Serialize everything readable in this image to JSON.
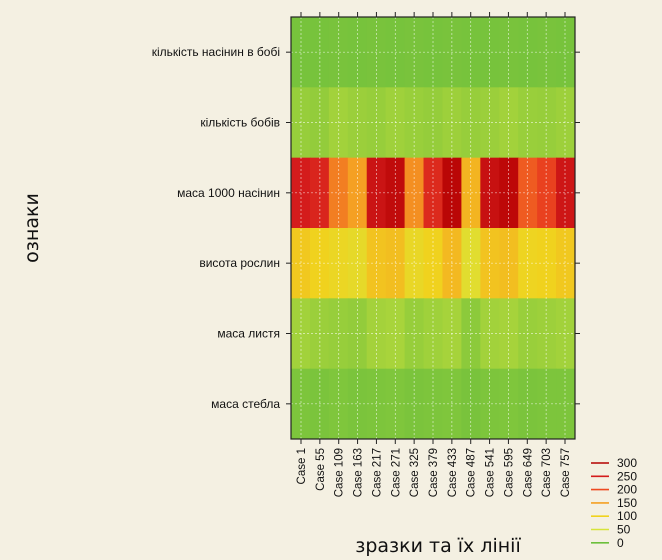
{
  "chart_data": {
    "type": "heatmap",
    "title": "",
    "xlabel": "зразки та їх лінії",
    "ylabel": "ознаки",
    "categories": [
      "Case 1",
      "Case 55",
      "Case 109",
      "Case 163",
      "Case 217",
      "Case 271",
      "Case 325",
      "Case 379",
      "Case 433",
      "Case 487",
      "Case 541",
      "Case 595",
      "Case 649",
      "Case 703",
      "Case 757"
    ],
    "rows": [
      "кількість насінин в бобі",
      "кількість бобів",
      "маса 1000 насінин",
      "висота рослин",
      "маса листя",
      "маса стебла"
    ],
    "x_range": [
      1,
      800
    ],
    "grid": true,
    "series": [
      {
        "name": "кількість насінин в бобі",
        "values": [
          5,
          5,
          6,
          5,
          6,
          5,
          6,
          5,
          6,
          5,
          5,
          6,
          5,
          6,
          5
        ]
      },
      {
        "name": "кількість бобів",
        "values": [
          20,
          18,
          25,
          22,
          20,
          24,
          21,
          19,
          23,
          20,
          22,
          25,
          21,
          20,
          23
        ]
      },
      {
        "name": "маса 1000 насінин",
        "values": [
          250,
          240,
          170,
          150,
          265,
          280,
          160,
          235,
          290,
          130,
          270,
          285,
          190,
          210,
          260
        ]
      },
      {
        "name": "висота рослин",
        "values": [
          110,
          100,
          90,
          80,
          115,
          120,
          85,
          100,
          125,
          70,
          115,
          120,
          95,
          100,
          110
        ]
      },
      {
        "name": "маса листя",
        "values": [
          25,
          22,
          20,
          18,
          26,
          28,
          20,
          24,
          27,
          15,
          25,
          27,
          21,
          23,
          25
        ]
      },
      {
        "name": "маса стебла",
        "values": [
          8,
          7,
          9,
          7,
          8,
          9,
          7,
          8,
          9,
          6,
          8,
          9,
          7,
          8,
          8
        ]
      }
    ],
    "legend": {
      "position": "bottom-right",
      "levels": [
        {
          "value": "300",
          "color": "#b30000"
        },
        {
          "value": "250",
          "color": "#d41c1c"
        },
        {
          "value": "200",
          "color": "#ee4a20"
        },
        {
          "value": "150",
          "color": "#f5a023"
        },
        {
          "value": "100",
          "color": "#f0d21e"
        },
        {
          "value": "50",
          "color": "#d7e43a"
        },
        {
          "value": "0",
          "color": "#6cbf3c"
        }
      ]
    }
  }
}
